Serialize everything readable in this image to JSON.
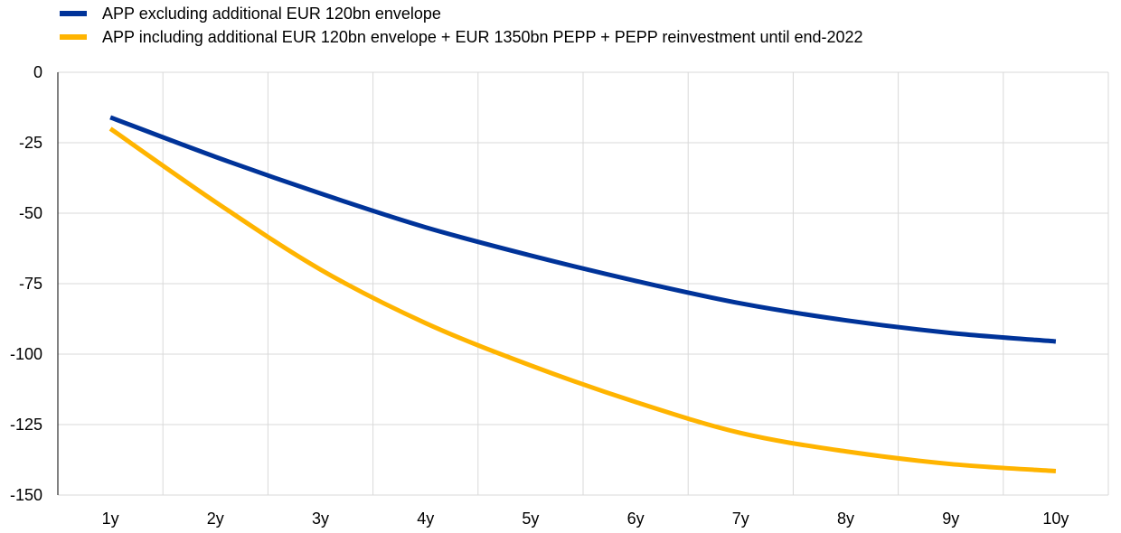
{
  "chart_data": {
    "type": "line",
    "title": "",
    "xlabel": "",
    "ylabel": "",
    "categories": [
      "1y",
      "2y",
      "3y",
      "4y",
      "5y",
      "6y",
      "7y",
      "8y",
      "9y",
      "10y"
    ],
    "ylim": [
      -150,
      0
    ],
    "yticks": [
      "0",
      "-25",
      "-50",
      "-75",
      "-100",
      "-125",
      "-150"
    ],
    "yticks_values": [
      0,
      -25,
      -50,
      -75,
      -100,
      -125,
      -150
    ],
    "grid": true,
    "legend_position": "top-left",
    "series": [
      {
        "name": "APP excluding additional EUR 120bn envelope",
        "color": "#003399",
        "values": [
          -16,
          -30,
          -43,
          -55,
          -65,
          -74,
          -82,
          -88,
          -92.5,
          -95.5
        ]
      },
      {
        "name": "APP including additional EUR 120bn envelope + EUR 1350bn PEPP + PEPP reinvestment until end-2022",
        "color": "#FFB400",
        "values": [
          -20,
          -46,
          -70,
          -89,
          -104,
          -117,
          -128,
          -134.5,
          -139,
          -141.5
        ]
      }
    ]
  }
}
